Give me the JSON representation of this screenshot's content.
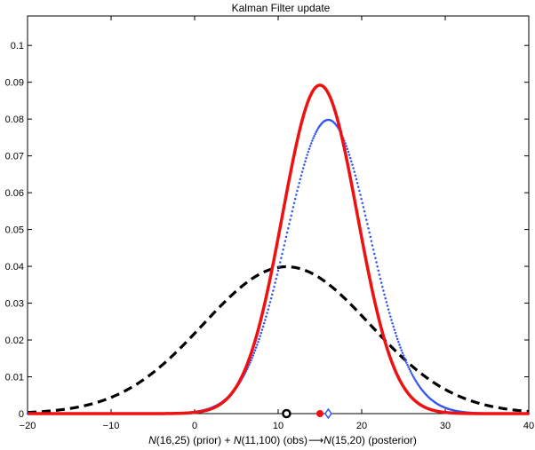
{
  "chart_data": {
    "type": "line",
    "title": "Kalman Filter update",
    "xlabel_parts": {
      "n1": "N",
      "p1": "(16,25) (prior) + ",
      "n2": "N",
      "p2": "(11,100) (obs)",
      "n3": "N",
      "p3": "(15,20) (posterior)"
    },
    "xlim": [
      -20,
      40
    ],
    "ylim": [
      0,
      0.108
    ],
    "xticks": [
      -20,
      -10,
      0,
      10,
      20,
      30,
      40
    ],
    "yticks": [
      0,
      0.01,
      0.02,
      0.03,
      0.04,
      0.05,
      0.06,
      0.07,
      0.08,
      0.09,
      0.1
    ],
    "xtick_labels": [
      "−20",
      "−10",
      "0",
      "10",
      "20",
      "30",
      "40"
    ],
    "ytick_labels": [
      "0",
      "0.01",
      "0.02",
      "0.03",
      "0.04",
      "0.05",
      "0.06",
      "0.07",
      "0.08",
      "0.09",
      "0.1"
    ],
    "grid": false,
    "series": [
      {
        "role": "prior",
        "mean": 16,
        "variance": 25,
        "color": "#3355ee",
        "style": "dotted",
        "marker": "diamond"
      },
      {
        "role": "obs",
        "mean": 11,
        "variance": 100,
        "color": "#000000",
        "style": "dashed",
        "marker": "circle"
      },
      {
        "role": "posterior",
        "mean": 15,
        "variance": 20,
        "color": "#ee1111",
        "style": "solid",
        "marker": "dot"
      }
    ]
  }
}
